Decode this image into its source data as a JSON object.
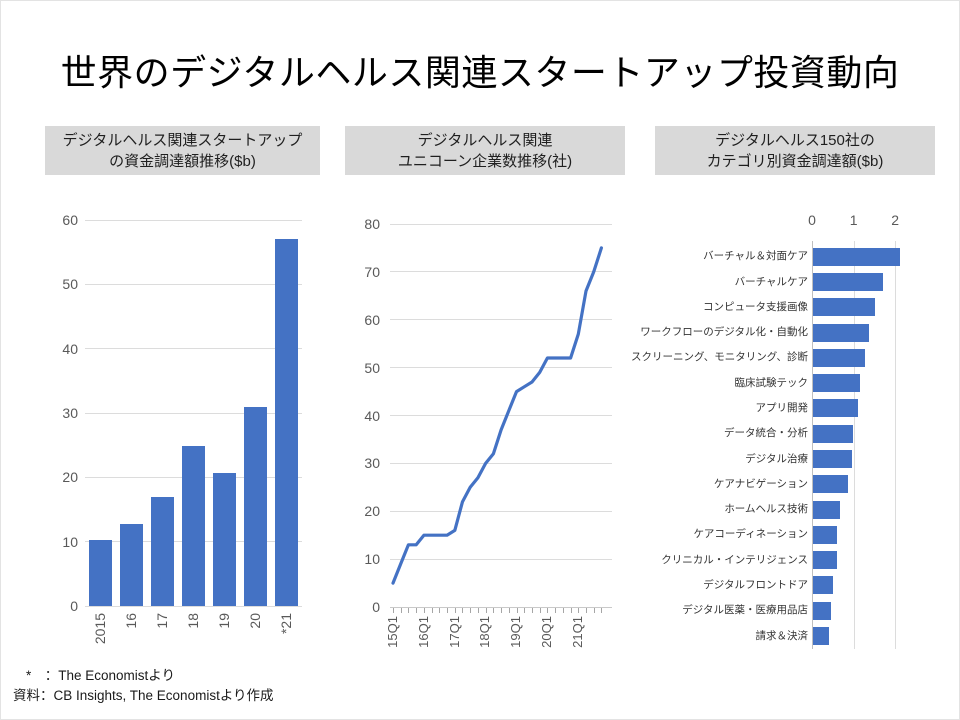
{
  "title": "世界のデジタルヘルス関連スタートアップ投資動向",
  "footer": {
    "line1": "*　：The Economistより",
    "line2": "資料：CB Insights, The Economistより作成"
  },
  "colors": {
    "accent": "#4472C4",
    "header_bg": "#D9D9D9",
    "grid": "#DCDCDC",
    "axis_line": "#BFBFBF",
    "axis_text": "#595959",
    "category_text": "#333333",
    "title_text": "#000000"
  },
  "chart_data": [
    {
      "id": "startup-funding",
      "type": "bar",
      "title_lines": [
        "デジタルヘルス関連スタートアップ",
        "の資金調達額推移($b)"
      ],
      "categories": [
        "2015",
        "16",
        "17",
        "18",
        "19",
        "20",
        "*21"
      ],
      "values": [
        10.3,
        12.7,
        16.9,
        24.8,
        20.7,
        31,
        57
      ],
      "ylim": [
        0,
        60
      ],
      "yticks": [
        0,
        10,
        20,
        30,
        40,
        50,
        60
      ],
      "grid": true,
      "legend": "none",
      "bar_color": "#4472C4"
    },
    {
      "id": "unicorn-count",
      "type": "line",
      "title_lines": [
        "デジタルヘルス関連",
        "ユニコーン企業数推移(社)"
      ],
      "x": [
        "15Q1",
        "15Q2",
        "15Q3",
        "15Q4",
        "16Q1",
        "16Q2",
        "16Q3",
        "16Q4",
        "17Q1",
        "17Q2",
        "17Q3",
        "17Q4",
        "18Q1",
        "18Q2",
        "18Q3",
        "18Q4",
        "19Q1",
        "19Q2",
        "19Q3",
        "19Q4",
        "20Q1",
        "20Q2",
        "20Q3",
        "20Q4",
        "21Q1",
        "21Q2",
        "21Q3",
        "21Q4"
      ],
      "values": [
        5,
        9,
        13,
        13,
        15,
        15,
        15,
        15,
        16,
        22,
        25,
        27,
        30,
        32,
        37,
        41,
        45,
        46,
        47,
        49,
        52,
        52,
        52,
        52,
        57,
        66,
        70,
        75
      ],
      "x_major_labels": [
        "15Q1",
        "16Q1",
        "17Q1",
        "18Q1",
        "19Q1",
        "20Q1",
        "21Q1"
      ],
      "ylim": [
        0,
        80
      ],
      "yticks": [
        0,
        10,
        20,
        30,
        40,
        50,
        60,
        70,
        80
      ],
      "grid": true,
      "legend": "none",
      "line_color": "#4472C4"
    },
    {
      "id": "category-funding",
      "type": "hbar",
      "title_lines": [
        "デジタルヘルス150社の",
        "カテゴリ別資金調達額($b)"
      ],
      "categories": [
        "バーチャル＆対面ケア",
        "バーチャルケア",
        "コンピュータ支援画像",
        "ワークフローのデジタル化・自動化",
        "スクリーニング、モニタリング、診断",
        "臨床試験テック",
        "アプリ開発",
        "データ統合・分析",
        "デジタル治療",
        "ケアナビゲーション",
        "ホームヘルス技術",
        "ケアコーディネーション",
        "クリニカル・インテリジェンス",
        "デジタルフロントドア",
        "デジタル医薬・医療用品店",
        "請求＆決済"
      ],
      "values": [
        2.1,
        1.7,
        1.5,
        1.35,
        1.25,
        1.15,
        1.1,
        0.97,
        0.95,
        0.85,
        0.65,
        0.6,
        0.58,
        0.5,
        0.45,
        0.4
      ],
      "xlim": [
        0,
        2
      ],
      "xticks": [
        0,
        1,
        2
      ],
      "axis_position": "top",
      "legend": "none",
      "bar_color": "#4472C4"
    }
  ]
}
